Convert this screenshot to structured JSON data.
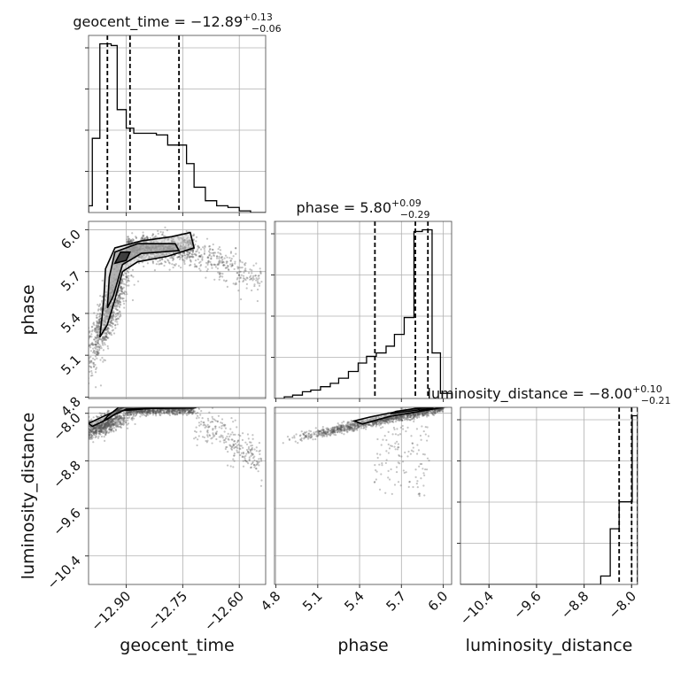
{
  "chart_data": {
    "type": "corner",
    "parameters": [
      "geocent_time",
      "phase",
      "luminosity_distance"
    ],
    "titles": [
      {
        "param": "geocent_time",
        "text": "geocent_time = ",
        "median": "−12.89",
        "plus": "+0.13",
        "minus": "−0.06"
      },
      {
        "param": "phase",
        "text": "phase = ",
        "median": "5.80",
        "plus": "+0.09",
        "minus": "−0.29"
      },
      {
        "param": "luminosity_distance",
        "text": "luminosity_distance = ",
        "median": "−8.00",
        "plus": "+0.10",
        "minus": "−0.21"
      }
    ],
    "axes": {
      "geocent_time": {
        "range": [
          -13.0,
          -12.53
        ],
        "ticks": [
          -12.9,
          -12.75,
          -12.6
        ],
        "tick_labels": [
          "−12.90",
          "−12.75",
          "−12.60"
        ],
        "label": "geocent_time"
      },
      "phase": {
        "range": [
          4.79,
          6.06
        ],
        "ticks": [
          4.8,
          5.1,
          5.4,
          5.7,
          6.0
        ],
        "tick_labels": [
          "4.8",
          "5.1",
          "5.4",
          "5.7",
          "6.0"
        ],
        "label": "phase"
      },
      "luminosity_distance": {
        "range": [
          -10.88,
          -7.9
        ],
        "ticks": [
          -10.4,
          -9.6,
          -8.8,
          -8.0
        ],
        "tick_labels": [
          "−10.4",
          "−9.6",
          "−8.8",
          "−8.0"
        ],
        "label": "luminosity_distance"
      }
    },
    "histograms": {
      "geocent_time": {
        "edges": [
          -13.0,
          -12.99,
          -12.97,
          -12.94,
          -12.924,
          -12.9,
          -12.88,
          -12.85,
          -12.82,
          -12.79,
          -12.74,
          -12.72,
          -12.69,
          -12.66,
          -12.63,
          -12.6,
          -12.57,
          -12.53
        ],
        "counts": [
          0.04,
          0.44,
          1.0,
          0.99,
          0.61,
          0.5,
          0.47,
          0.47,
          0.46,
          0.4,
          0.29,
          0.15,
          0.07,
          0.04,
          0.03,
          0.01,
          0.0
        ]
      },
      "phase": {
        "edges": [
          4.79,
          4.86,
          4.92,
          4.99,
          5.05,
          5.12,
          5.19,
          5.25,
          5.32,
          5.39,
          5.45,
          5.52,
          5.59,
          5.65,
          5.72,
          5.79,
          5.85,
          5.92,
          5.98,
          6.06
        ],
        "counts": [
          0.0,
          0.01,
          0.02,
          0.04,
          0.05,
          0.07,
          0.09,
          0.12,
          0.16,
          0.21,
          0.25,
          0.27,
          0.31,
          0.38,
          0.48,
          0.99,
          1.0,
          0.27,
          0.03
        ]
      },
      "luminosity_distance": {
        "edges": [
          -10.88,
          -8.52,
          -8.36,
          -8.21,
          -8.06,
          -7.99,
          -7.9
        ],
        "counts": [
          0.0,
          0.05,
          0.33,
          0.49,
          0.49,
          1.0
        ]
      }
    },
    "quantiles": {
      "geocent_time": [
        -12.95,
        -12.89,
        -12.76
      ],
      "phase": [
        5.51,
        5.8,
        5.89
      ],
      "luminosity_distance": [
        -8.21,
        -8.0,
        -7.9
      ]
    },
    "colors": {
      "line": "#000000",
      "points": "#555555",
      "grid": "#b0b0b0"
    }
  }
}
